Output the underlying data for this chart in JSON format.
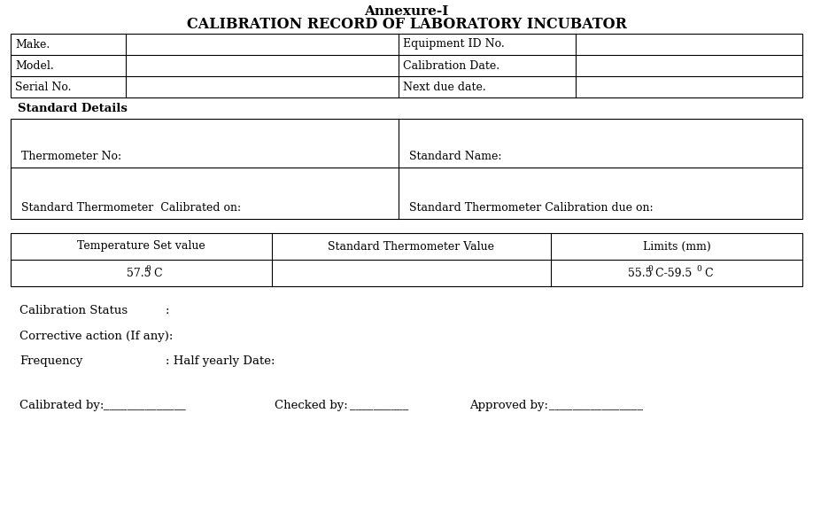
{
  "title_line1": "Annexure-I",
  "title_line2": "CALIBRATION RECORD OF LABORATORY INCUBATOR",
  "bg_color": "#ffffff",
  "text_color": "#000000",
  "font_family": "DejaVu Serif",
  "info_rows": [
    [
      "Make.",
      "",
      "Equipment ID No.",
      ""
    ],
    [
      "Model.",
      "",
      "Calibration Date.",
      ""
    ],
    [
      "Serial No.",
      "",
      "Next due date.",
      ""
    ]
  ],
  "standard_details_label": "Standard Details",
  "standard_rows": [
    [
      "Thermometer No:",
      "Standard Name:"
    ],
    [
      "Standard Thermometer  Calibrated on:",
      "Standard Thermometer Calibration due on:"
    ]
  ],
  "measurement_headers": [
    "Temperature Set value",
    "Standard Thermometer Value",
    "Limits (mm)"
  ],
  "measurement_data_col1_parts": [
    "57.5",
    "0",
    " C"
  ],
  "measurement_data_col3_parts": [
    "55.5",
    "0",
    " C-59.5",
    "0",
    " C"
  ],
  "calibration_status_label": "Calibration Status",
  "calibration_status_colon": ":",
  "corrective_action": "Corrective action (If any):",
  "frequency_label": "Frequency",
  "frequency_value": ": Half yearly Date:",
  "calibrated_by": "Calibrated by:",
  "calibrated_line": "______________",
  "checked_by": "Checked by:",
  "checked_line": "__________",
  "approved_by": "Approved by:",
  "approved_line": "________________"
}
